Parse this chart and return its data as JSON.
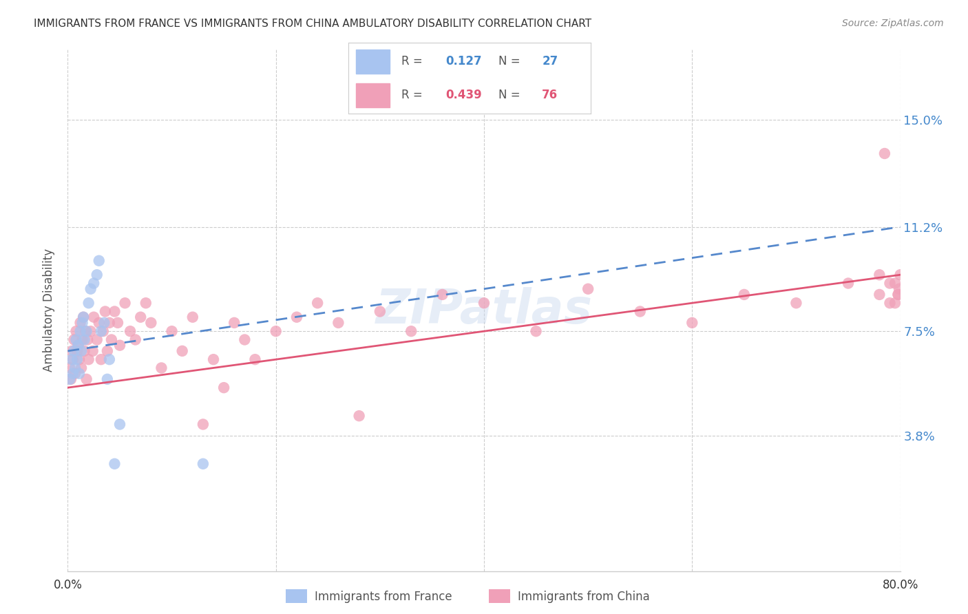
{
  "title": "IMMIGRANTS FROM FRANCE VS IMMIGRANTS FROM CHINA AMBULATORY DISABILITY CORRELATION CHART",
  "source": "Source: ZipAtlas.com",
  "ylabel": "Ambulatory Disability",
  "ytick_labels": [
    "15.0%",
    "11.2%",
    "7.5%",
    "3.8%"
  ],
  "ytick_values": [
    0.15,
    0.112,
    0.075,
    0.038
  ],
  "xlim": [
    0.0,
    0.8
  ],
  "ylim": [
    -0.01,
    0.175
  ],
  "legend_france_r": "0.127",
  "legend_france_n": "27",
  "legend_china_r": "0.439",
  "legend_china_n": "76",
  "france_color": "#a8c4f0",
  "china_color": "#f0a0b8",
  "france_line_color": "#5588cc",
  "china_line_color": "#e05575",
  "france_line_x0": 0.0,
  "france_line_y0": 0.068,
  "france_line_x1": 0.8,
  "france_line_y1": 0.112,
  "china_line_x0": 0.0,
  "china_line_y0": 0.055,
  "china_line_x1": 0.8,
  "china_line_y1": 0.095,
  "france_points_x": [
    0.002,
    0.004,
    0.005,
    0.006,
    0.007,
    0.008,
    0.009,
    0.01,
    0.011,
    0.012,
    0.013,
    0.014,
    0.015,
    0.016,
    0.018,
    0.02,
    0.022,
    0.025,
    0.028,
    0.03,
    0.032,
    0.035,
    0.038,
    0.04,
    0.045,
    0.05,
    0.13
  ],
  "france_points_y": [
    0.058,
    0.065,
    0.06,
    0.068,
    0.062,
    0.072,
    0.065,
    0.07,
    0.06,
    0.075,
    0.068,
    0.078,
    0.08,
    0.072,
    0.075,
    0.085,
    0.09,
    0.092,
    0.095,
    0.1,
    0.075,
    0.078,
    0.058,
    0.065,
    0.028,
    0.042,
    0.028
  ],
  "china_points_x": [
    0.002,
    0.003,
    0.004,
    0.005,
    0.006,
    0.007,
    0.008,
    0.009,
    0.01,
    0.011,
    0.012,
    0.013,
    0.014,
    0.015,
    0.016,
    0.017,
    0.018,
    0.019,
    0.02,
    0.022,
    0.024,
    0.025,
    0.028,
    0.03,
    0.032,
    0.034,
    0.036,
    0.038,
    0.04,
    0.042,
    0.045,
    0.048,
    0.05,
    0.055,
    0.06,
    0.065,
    0.07,
    0.075,
    0.08,
    0.09,
    0.1,
    0.11,
    0.12,
    0.13,
    0.14,
    0.15,
    0.16,
    0.17,
    0.18,
    0.2,
    0.22,
    0.24,
    0.26,
    0.28,
    0.3,
    0.33,
    0.36,
    0.4,
    0.45,
    0.5,
    0.55,
    0.6,
    0.65,
    0.7,
    0.75,
    0.78,
    0.79,
    0.795,
    0.798,
    0.799,
    0.8,
    0.798,
    0.795,
    0.79,
    0.785,
    0.78
  ],
  "china_points_y": [
    0.062,
    0.058,
    0.068,
    0.065,
    0.072,
    0.06,
    0.075,
    0.068,
    0.07,
    0.065,
    0.078,
    0.062,
    0.072,
    0.08,
    0.068,
    0.075,
    0.058,
    0.072,
    0.065,
    0.075,
    0.068,
    0.08,
    0.072,
    0.078,
    0.065,
    0.075,
    0.082,
    0.068,
    0.078,
    0.072,
    0.082,
    0.078,
    0.07,
    0.085,
    0.075,
    0.072,
    0.08,
    0.085,
    0.078,
    0.062,
    0.075,
    0.068,
    0.08,
    0.042,
    0.065,
    0.055,
    0.078,
    0.072,
    0.065,
    0.075,
    0.08,
    0.085,
    0.078,
    0.045,
    0.082,
    0.075,
    0.088,
    0.085,
    0.075,
    0.09,
    0.082,
    0.078,
    0.088,
    0.085,
    0.092,
    0.088,
    0.085,
    0.092,
    0.088,
    0.09,
    0.095,
    0.088,
    0.085,
    0.092,
    0.138,
    0.095
  ]
}
